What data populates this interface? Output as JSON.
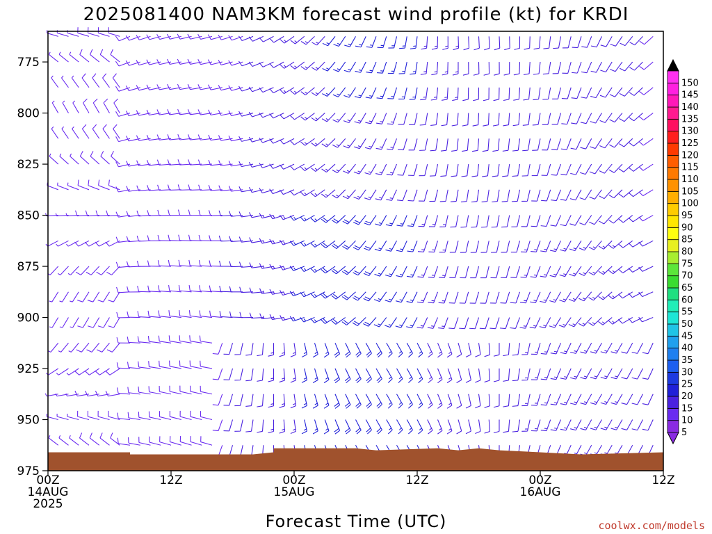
{
  "chart_data": {
    "type": "wind-barb-profile",
    "title": "2025081400 NAM3KM forecast wind profile (kt) for KRDI",
    "xlabel": "Forecast Time (UTC)",
    "ylabel": "",
    "y_ticks": [
      "775",
      "800",
      "825",
      "850",
      "875",
      "900",
      "925",
      "950",
      "975"
    ],
    "ylim": [
      760,
      975
    ],
    "x_ticks": [
      {
        "hour": 0,
        "line1": "00Z",
        "line2": "14AUG",
        "line3": "2025"
      },
      {
        "hour": 12,
        "line1": "12Z",
        "line2": "",
        "line3": ""
      },
      {
        "hour": 24,
        "line1": "00Z",
        "line2": "15AUG",
        "line3": ""
      },
      {
        "hour": 36,
        "line1": "12Z",
        "line2": "",
        "line3": ""
      },
      {
        "hour": 48,
        "line1": "00Z",
        "line2": "16AUG",
        "line3": ""
      },
      {
        "hour": 60,
        "line1": "12Z",
        "line2": "",
        "line3": ""
      }
    ],
    "xlim": [
      0,
      60
    ],
    "colorbar": {
      "levels": [
        "5",
        "10",
        "15",
        "20",
        "25",
        "30",
        "35",
        "40",
        "45",
        "50",
        "55",
        "60",
        "65",
        "70",
        "75",
        "80",
        "85",
        "90",
        "95",
        "100",
        "105",
        "110",
        "115",
        "120",
        "125",
        "130",
        "135",
        "140",
        "145",
        "150"
      ],
      "colors": [
        "#8a2be2",
        "#6a2bf0",
        "#4a22e0",
        "#2020d8",
        "#1d3ae0",
        "#1d5ff0",
        "#1f80f0",
        "#20a0ee",
        "#20c4e6",
        "#1ee6d6",
        "#20eeb8",
        "#20e080",
        "#3adc30",
        "#5ce63a",
        "#a8ee30",
        "#e8f020",
        "#ffff10",
        "#ffe600",
        "#ffcc00",
        "#ffae00",
        "#ff9200",
        "#ff7a00",
        "#ff5e00",
        "#ff3a00",
        "#ff1e1e",
        "#ff1060",
        "#ff1a90",
        "#ff18b8",
        "#ff20e0",
        "#ff30f0"
      ]
    },
    "terrain_color": "#a0522d",
    "credit": "coolwx.com/models"
  }
}
